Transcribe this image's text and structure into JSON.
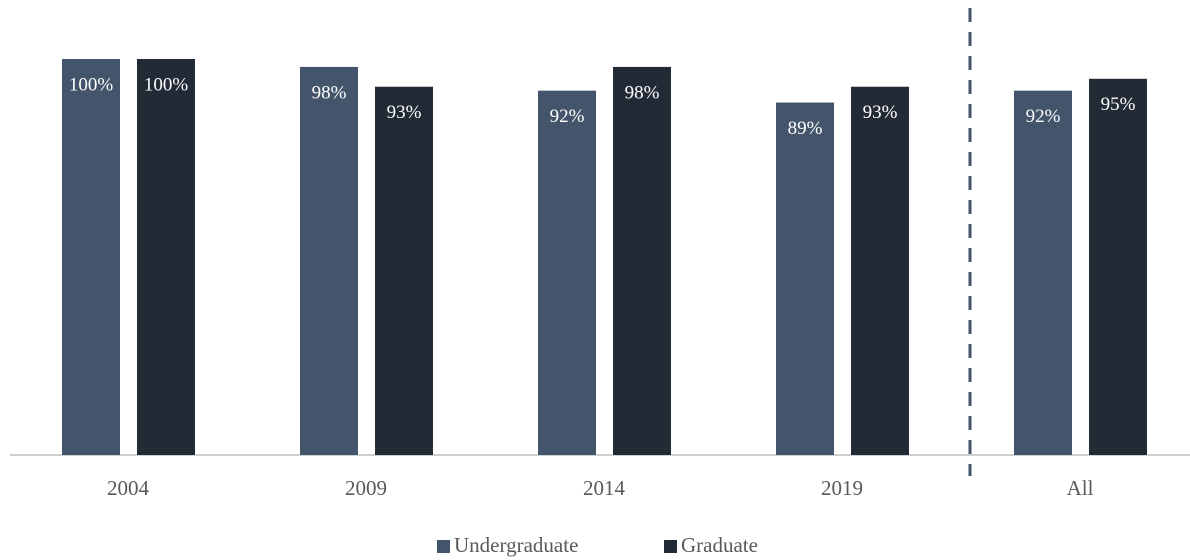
{
  "chart_data": {
    "type": "bar",
    "categories": [
      "2004",
      "2009",
      "2014",
      "2019",
      "All"
    ],
    "series": [
      {
        "name": "Undergraduate",
        "color": "#44546a",
        "values": [
          100,
          98,
          92,
          89,
          92
        ],
        "value_labels": [
          "100%",
          "98%",
          "92%",
          "89%",
          "92%"
        ]
      },
      {
        "name": "Graduate",
        "color": "#222a35",
        "values": [
          100,
          93,
          98,
          93,
          95
        ],
        "value_labels": [
          "100%",
          "93%",
          "98%",
          "93%",
          "95%"
        ]
      }
    ],
    "ylim": [
      0,
      100
    ],
    "grid": false,
    "legend": "bottom"
  }
}
